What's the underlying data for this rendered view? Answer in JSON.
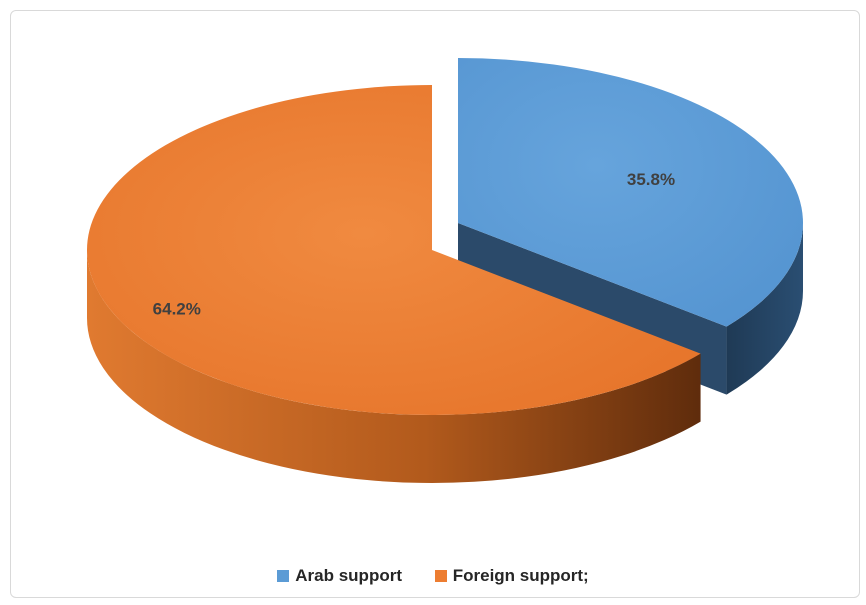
{
  "chart_data": {
    "type": "pie",
    "style": "3d-exploded",
    "categories": [
      "Arab support",
      "Foreign support;"
    ],
    "values": [
      35.8,
      64.2
    ],
    "data_labels": [
      "35.8%",
      "64.2%"
    ],
    "colors": [
      "#5b9bd5",
      "#ed7d31"
    ],
    "legend": {
      "position": "bottom",
      "entries": [
        "Arab support",
        "Foreign support;"
      ]
    }
  }
}
